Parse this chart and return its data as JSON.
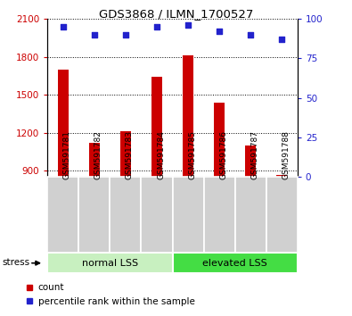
{
  "title": "GDS3868 / ILMN_1700527",
  "samples": [
    "GSM591781",
    "GSM591782",
    "GSM591783",
    "GSM591784",
    "GSM591785",
    "GSM591786",
    "GSM591787",
    "GSM591788"
  ],
  "bar_values": [
    1700,
    1120,
    1215,
    1640,
    1815,
    1440,
    1100,
    865
  ],
  "percentile_values": [
    95,
    90,
    90,
    95,
    96,
    92,
    90,
    87
  ],
  "ylim_left": [
    850,
    2100
  ],
  "ylim_right": [
    0,
    100
  ],
  "yticks_left": [
    900,
    1200,
    1500,
    1800,
    2100
  ],
  "yticks_right": [
    0,
    25,
    50,
    75,
    100
  ],
  "bar_color": "#cc0000",
  "marker_color": "#2222cc",
  "bar_base": 855,
  "group_normal_color": "#c8f0c0",
  "group_elevated_color": "#44dd44",
  "stress_label": "stress",
  "legend_count_label": "count",
  "legend_percentile_label": "percentile rank within the sample",
  "left_tick_color": "#cc0000",
  "right_tick_color": "#2222cc",
  "sample_bg_color": "#d0d0d0",
  "plot_bg": "#ffffff"
}
